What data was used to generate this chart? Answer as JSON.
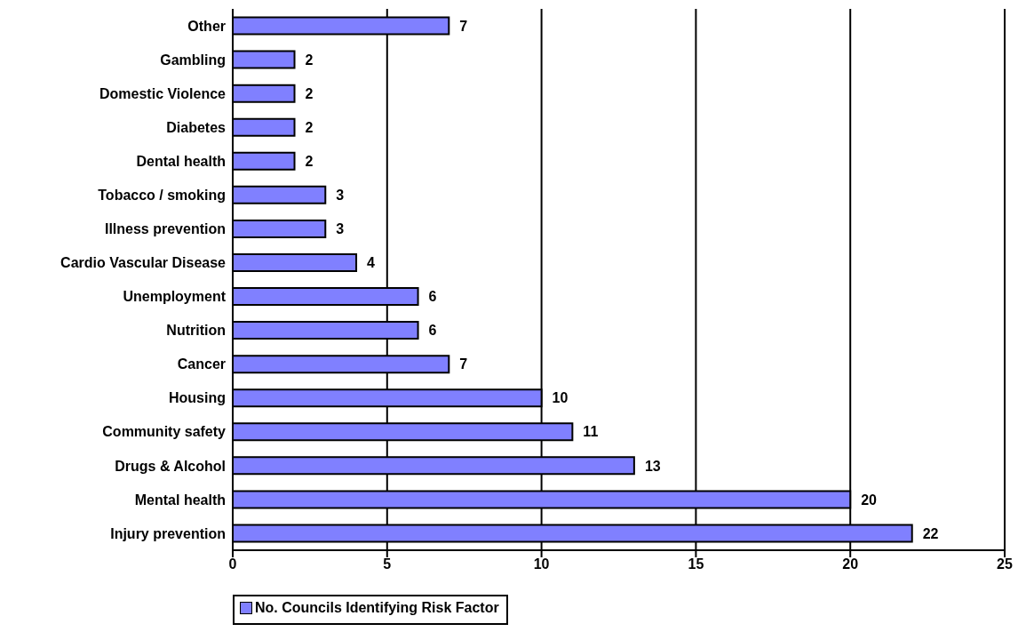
{
  "chart_data": {
    "type": "bar",
    "orientation": "horizontal",
    "categories": [
      "Other",
      "Gambling",
      "Domestic Violence",
      "Diabetes",
      "Dental health",
      "Tobacco / smoking",
      "Illness prevention",
      "Cardio Vascular Disease",
      "Unemployment",
      "Nutrition",
      "Cancer",
      "Housing",
      "Community safety",
      "Drugs & Alcohol",
      "Mental health",
      "Injury prevention"
    ],
    "series": [
      {
        "name": "No. Councils Identifying Risk Factor",
        "color": "#8080ff",
        "values": [
          7,
          2,
          2,
          2,
          2,
          3,
          3,
          4,
          6,
          6,
          7,
          10,
          11,
          13,
          20,
          22
        ]
      }
    ],
    "xlim": [
      0,
      25
    ],
    "xticks": [
      0,
      5,
      10,
      15,
      20,
      25
    ],
    "grid": "x",
    "legend": "bottom",
    "data_labels": true
  }
}
